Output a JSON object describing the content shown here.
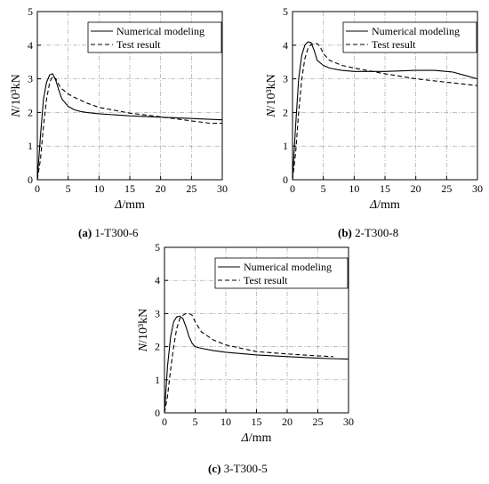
{
  "chart_data": [
    {
      "type": "line",
      "caption_letter": "(a)",
      "caption_text": " 1-T300-6",
      "xlabel_symbol": "Δ",
      "xlabel_unit": "/mm",
      "ylabel_symbol": "N",
      "ylabel_unit": "/10³kN",
      "xlim": [
        0,
        30
      ],
      "ylim": [
        0,
        5
      ],
      "xticks": [
        0,
        5,
        10,
        15,
        20,
        25,
        30
      ],
      "yticks": [
        0,
        1,
        2,
        3,
        4,
        5
      ],
      "grid": true,
      "legend_position": "top-right",
      "series": [
        {
          "name": "Numerical modeling",
          "line_style": "solid",
          "x": [
            0,
            0.5,
            1,
            1.5,
            2,
            2.5,
            3,
            3.5,
            4,
            5,
            6,
            7,
            8,
            10,
            15,
            20,
            25,
            30
          ],
          "y": [
            0,
            1.3,
            2.4,
            2.9,
            3.12,
            3.15,
            2.95,
            2.65,
            2.4,
            2.18,
            2.08,
            2.03,
            2.0,
            1.96,
            1.9,
            1.86,
            1.82,
            1.78
          ]
        },
        {
          "name": "Test result",
          "line_style": "dashed",
          "x": [
            0,
            0.5,
            1,
            1.5,
            2,
            2.5,
            3,
            3.5,
            4,
            5,
            6,
            8,
            10,
            15,
            20,
            25,
            28,
            30
          ],
          "y": [
            0,
            0.6,
            1.6,
            2.4,
            2.9,
            3.08,
            3.0,
            2.82,
            2.7,
            2.55,
            2.45,
            2.28,
            2.15,
            1.98,
            1.87,
            1.75,
            1.68,
            1.68
          ]
        }
      ]
    },
    {
      "type": "line",
      "caption_letter": "(b)",
      "caption_text": " 2-T300-8",
      "xlabel_symbol": "Δ",
      "xlabel_unit": "/mm",
      "ylabel_symbol": "N",
      "ylabel_unit": "/10³kN",
      "xlim": [
        0,
        30
      ],
      "ylim": [
        0,
        5
      ],
      "xticks": [
        0,
        5,
        10,
        15,
        20,
        25,
        30
      ],
      "yticks": [
        0,
        1,
        2,
        3,
        4,
        5
      ],
      "grid": true,
      "legend_position": "top-right",
      "series": [
        {
          "name": "Numerical modeling",
          "line_style": "solid",
          "x": [
            0,
            0.5,
            1,
            1.5,
            2,
            2.5,
            3,
            3.5,
            4,
            5,
            6,
            8,
            10,
            15,
            20,
            23,
            26,
            28,
            30
          ],
          "y": [
            0,
            1.6,
            3.0,
            3.7,
            4.0,
            4.1,
            4.08,
            3.85,
            3.55,
            3.4,
            3.32,
            3.25,
            3.22,
            3.22,
            3.25,
            3.25,
            3.2,
            3.1,
            3.0
          ]
        },
        {
          "name": "Test result",
          "line_style": "dashed",
          "x": [
            0,
            0.5,
            1,
            1.5,
            2,
            2.5,
            3,
            3.5,
            4,
            4.5,
            5,
            6,
            8,
            10,
            15,
            20,
            25,
            30
          ],
          "y": [
            0,
            0.8,
            2.0,
            3.0,
            3.6,
            3.9,
            4.02,
            4.05,
            4.05,
            3.95,
            3.75,
            3.55,
            3.4,
            3.32,
            3.15,
            3.0,
            2.9,
            2.8
          ]
        }
      ]
    },
    {
      "type": "line",
      "caption_letter": "(c)",
      "caption_text": " 3-T300-5",
      "xlabel_symbol": "Δ",
      "xlabel_unit": "/mm",
      "ylabel_symbol": "N",
      "ylabel_unit": "/10³kN",
      "xlim": [
        0,
        30
      ],
      "ylim": [
        0,
        5
      ],
      "xticks": [
        0,
        5,
        10,
        15,
        20,
        25,
        30
      ],
      "yticks": [
        0,
        1,
        2,
        3,
        4,
        5
      ],
      "grid": true,
      "legend_position": "top-right",
      "series": [
        {
          "name": "Numerical modeling",
          "line_style": "solid",
          "x": [
            0,
            0.5,
            1,
            1.5,
            2,
            2.5,
            3,
            3.5,
            4,
            4.5,
            5,
            6,
            8,
            10,
            15,
            20,
            25,
            30
          ],
          "y": [
            0,
            1.4,
            2.3,
            2.75,
            2.9,
            2.92,
            2.85,
            2.6,
            2.3,
            2.1,
            2.0,
            1.95,
            1.88,
            1.83,
            1.75,
            1.7,
            1.65,
            1.62
          ]
        },
        {
          "name": "Test result",
          "line_style": "dashed",
          "x": [
            0,
            0.5,
            1,
            1.5,
            2,
            2.5,
            3,
            3.5,
            4,
            4.5,
            5,
            6,
            8,
            10,
            15,
            20,
            25,
            27.5
          ],
          "y": [
            0,
            0.5,
            1.3,
            2.0,
            2.55,
            2.85,
            2.95,
            3.0,
            3.0,
            2.95,
            2.75,
            2.45,
            2.2,
            2.05,
            1.85,
            1.78,
            1.72,
            1.7
          ]
        }
      ]
    }
  ]
}
